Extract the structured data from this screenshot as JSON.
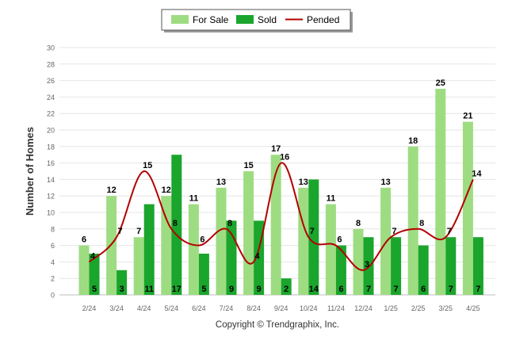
{
  "legend": {
    "for_sale_label": "For Sale",
    "sold_label": "Sold",
    "pended_label": "Pended"
  },
  "footer": {
    "copyright": "Copyright © Trendgraphix, Inc."
  },
  "colors": {
    "for_sale": "#9edc82",
    "sold": "#1aa52c",
    "pended": "#b30000",
    "grid": "#e6e6e6",
    "axis_text": "#666666"
  },
  "chart_data": {
    "type": "bar",
    "categories": [
      "2/24",
      "3/24",
      "4/24",
      "5/24",
      "6/24",
      "7/24",
      "8/24",
      "9/24",
      "10/24",
      "11/24",
      "12/24",
      "1/25",
      "2/25",
      "3/25",
      "4/25"
    ],
    "series": [
      {
        "name": "For Sale",
        "type": "bar",
        "values": [
          6,
          12,
          7,
          12,
          11,
          13,
          15,
          17,
          13,
          11,
          8,
          13,
          18,
          25,
          21
        ]
      },
      {
        "name": "Sold",
        "type": "bar",
        "values": [
          5,
          3,
          11,
          17,
          5,
          9,
          9,
          2,
          14,
          6,
          7,
          7,
          6,
          7,
          7
        ]
      },
      {
        "name": "Pended",
        "type": "line",
        "values": [
          4,
          7,
          15,
          8,
          6,
          8,
          4,
          16,
          7,
          6,
          3,
          7,
          8,
          7,
          14
        ]
      }
    ],
    "ylabel": "Number of Homes",
    "xlabel": "",
    "ylim": [
      0,
      30
    ],
    "yticks": [
      0,
      2,
      4,
      6,
      8,
      10,
      12,
      14,
      16,
      18,
      20,
      22,
      24,
      26,
      28,
      30
    ],
    "grid": true,
    "legend_position": "top-center"
  }
}
